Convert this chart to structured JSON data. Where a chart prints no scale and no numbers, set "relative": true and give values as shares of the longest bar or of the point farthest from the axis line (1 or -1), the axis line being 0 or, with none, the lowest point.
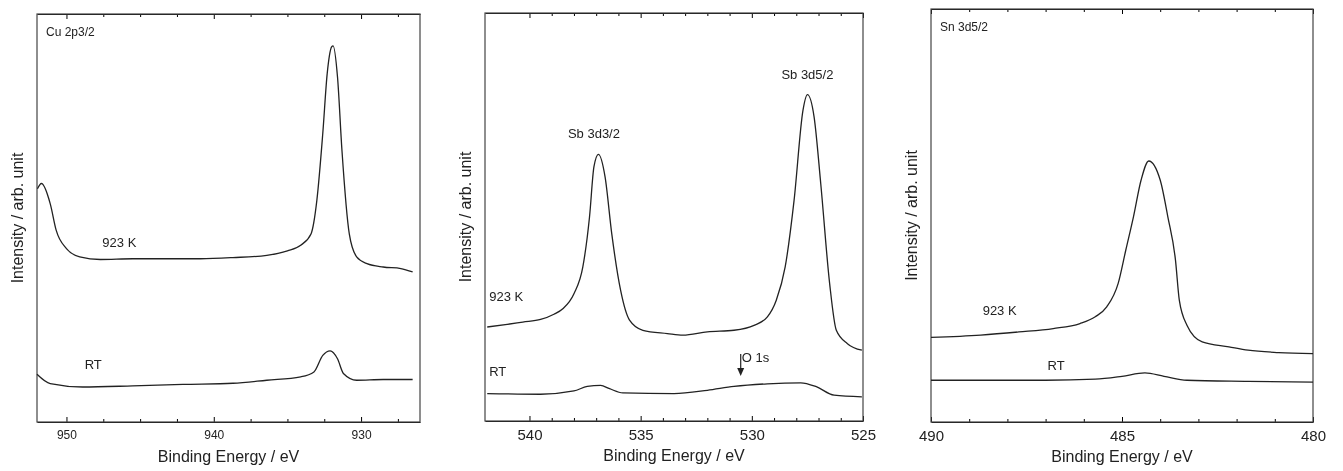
{
  "chart_data": [
    {
      "type": "line",
      "title": "Cu 2p3/2",
      "xlabel": "Binding Energy / eV",
      "ylabel": "Intensity / arb. unit",
      "relative": true,
      "xlim": [
        952,
        926
      ],
      "xticks": [
        950,
        {
          "value": 947.5,
          "label": null
        },
        {
          "value": 945,
          "label": null
        },
        {
          "value": 942.5,
          "label": null
        },
        940,
        {
          "value": 937.5,
          "label": null
        },
        {
          "value": 935,
          "label": null
        },
        {
          "value": 932.5,
          "label": null
        },
        930,
        {
          "value": 927.5,
          "label": null
        }
      ],
      "series": [
        {
          "name": "923 K",
          "color": "#222222",
          "x": [
            951.97,
            951.7,
            951.1,
            950.7,
            950.0,
            949.1,
            947.7,
            945.5,
            943.2,
            940.9,
            938.7,
            936.4,
            935.0,
            934.1,
            933.4,
            933.0,
            932.6,
            932.3,
            932.0,
            931.9,
            931.6,
            931.3,
            930.8,
            930.3,
            929.6,
            928.5,
            927.3,
            926.5
          ],
          "values": [
            0.62,
            0.634,
            0.58,
            0.51,
            0.461,
            0.439,
            0.432,
            0.434,
            0.434,
            0.434,
            0.437,
            0.443,
            0.455,
            0.47,
            0.5,
            0.59,
            0.767,
            0.926,
            0.997,
            1,
            0.917,
            0.723,
            0.5,
            0.439,
            0.421,
            0.412,
            0.408,
            0.399
          ]
        },
        {
          "name": "RT",
          "color": "#222222",
          "x": [
            952.0,
            951.1,
            948.9,
            945.5,
            942.1,
            938.7,
            936.4,
            934.1,
            933.2,
            932.6,
            932.1,
            931.6,
            931.2,
            930.3,
            928.5,
            926.5
          ],
          "values": [
            0.127,
            0.102,
            0.093,
            0.096,
            0.1,
            0.103,
            0.111,
            0.12,
            0.133,
            0.177,
            0.189,
            0.168,
            0.129,
            0.111,
            0.113,
            0.113
          ]
        }
      ]
    },
    {
      "type": "line",
      "xlabel": "Binding Energy / eV",
      "ylabel": "Intensity / arb. unit",
      "relative": true,
      "xlim": [
        542,
        525
      ],
      "xticks": [
        540,
        {
          "value": 539,
          "label": null
        },
        {
          "value": 538,
          "label": null
        },
        {
          "value": 537,
          "label": null
        },
        {
          "value": 536,
          "label": null
        },
        535,
        {
          "value": 534,
          "label": null
        },
        {
          "value": 533,
          "label": null
        },
        {
          "value": 532,
          "label": null
        },
        {
          "value": 531,
          "label": null
        },
        530,
        {
          "value": 529,
          "label": null
        },
        {
          "value": 528,
          "label": null
        },
        {
          "value": 527,
          "label": null
        },
        {
          "value": 526,
          "label": null
        },
        525
      ],
      "annotations": [
        {
          "text": "Sb 3d3/2",
          "x": 537.1,
          "y": 0.817
        },
        {
          "text": "Sb 3d5/2",
          "x": 527.5,
          "y": 1
        },
        {
          "text": "O 1s",
          "x": 530.5,
          "y": 0.107
        }
      ],
      "series": [
        {
          "name": "923 K",
          "color": "#222222",
          "x": [
            541.9,
            541.0,
            540.3,
            539.5,
            538.9,
            538.5,
            538.0,
            537.6,
            537.3,
            537.1,
            536.9,
            536.6,
            536.3,
            535.9,
            535.5,
            534.9,
            533.8,
            533.1,
            532.0,
            530.8,
            529.9,
            529.3,
            528.9,
            528.5,
            528.1,
            527.7,
            527.5,
            527.2,
            526.9,
            526.5,
            526.2,
            525.7,
            525.05
          ],
          "values": [
            0.288,
            0.296,
            0.303,
            0.311,
            0.327,
            0.344,
            0.39,
            0.472,
            0.625,
            0.779,
            0.817,
            0.748,
            0.574,
            0.4,
            0.309,
            0.278,
            0.268,
            0.263,
            0.273,
            0.278,
            0.293,
            0.319,
            0.37,
            0.472,
            0.676,
            0.952,
            1,
            0.932,
            0.727,
            0.421,
            0.278,
            0.237,
            0.217
          ]
        },
        {
          "name": "RT",
          "color": "#222222",
          "x": [
            541.9,
            539.5,
            538.0,
            537.4,
            536.8,
            536.4,
            535.8,
            533.5,
            532.0,
            530.8,
            529.3,
            527.8,
            527.1,
            526.3,
            525.05
          ],
          "values": [
            0.084,
            0.082,
            0.092,
            0.106,
            0.109,
            0.099,
            0.086,
            0.084,
            0.094,
            0.106,
            0.114,
            0.117,
            0.105,
            0.079,
            0.074
          ]
        }
      ]
    },
    {
      "type": "line",
      "title": "Sn 3d5/2",
      "xlabel": "Binding Energy / eV",
      "ylabel": "Intensity / arb. unit",
      "relative": true,
      "xlim": [
        490,
        480
      ],
      "xticks": [
        490,
        {
          "value": 489,
          "label": null
        },
        {
          "value": 488,
          "label": null
        },
        {
          "value": 487,
          "label": null
        },
        {
          "value": 486,
          "label": null
        },
        485,
        {
          "value": 484,
          "label": null
        },
        {
          "value": 483,
          "label": null
        },
        {
          "value": 482,
          "label": null
        },
        {
          "value": 481,
          "label": null
        },
        480
      ],
      "series": [
        {
          "name": "923 K",
          "color": "#222222",
          "x": [
            490.0,
            488.7,
            487.7,
            486.8,
            486.1,
            485.7,
            485.4,
            485.1,
            484.9,
            484.7,
            484.5,
            484.3,
            484.0,
            483.8,
            483.6,
            483.5,
            483.3,
            482.9,
            482.2,
            481.7,
            480.9,
            480.0
          ],
          "values": [
            0.324,
            0.333,
            0.345,
            0.358,
            0.377,
            0.403,
            0.441,
            0.531,
            0.659,
            0.786,
            0.927,
            1,
            0.927,
            0.786,
            0.62,
            0.467,
            0.371,
            0.307,
            0.288,
            0.275,
            0.266,
            0.262
          ]
        },
        {
          "name": "RT",
          "color": "#222222",
          "x": [
            490.0,
            487.0,
            485.7,
            485.0,
            484.4,
            483.9,
            483.3,
            481.7,
            480.0
          ],
          "values": [
            0.16,
            0.16,
            0.164,
            0.175,
            0.188,
            0.175,
            0.16,
            0.156,
            0.153
          ]
        }
      ]
    }
  ]
}
